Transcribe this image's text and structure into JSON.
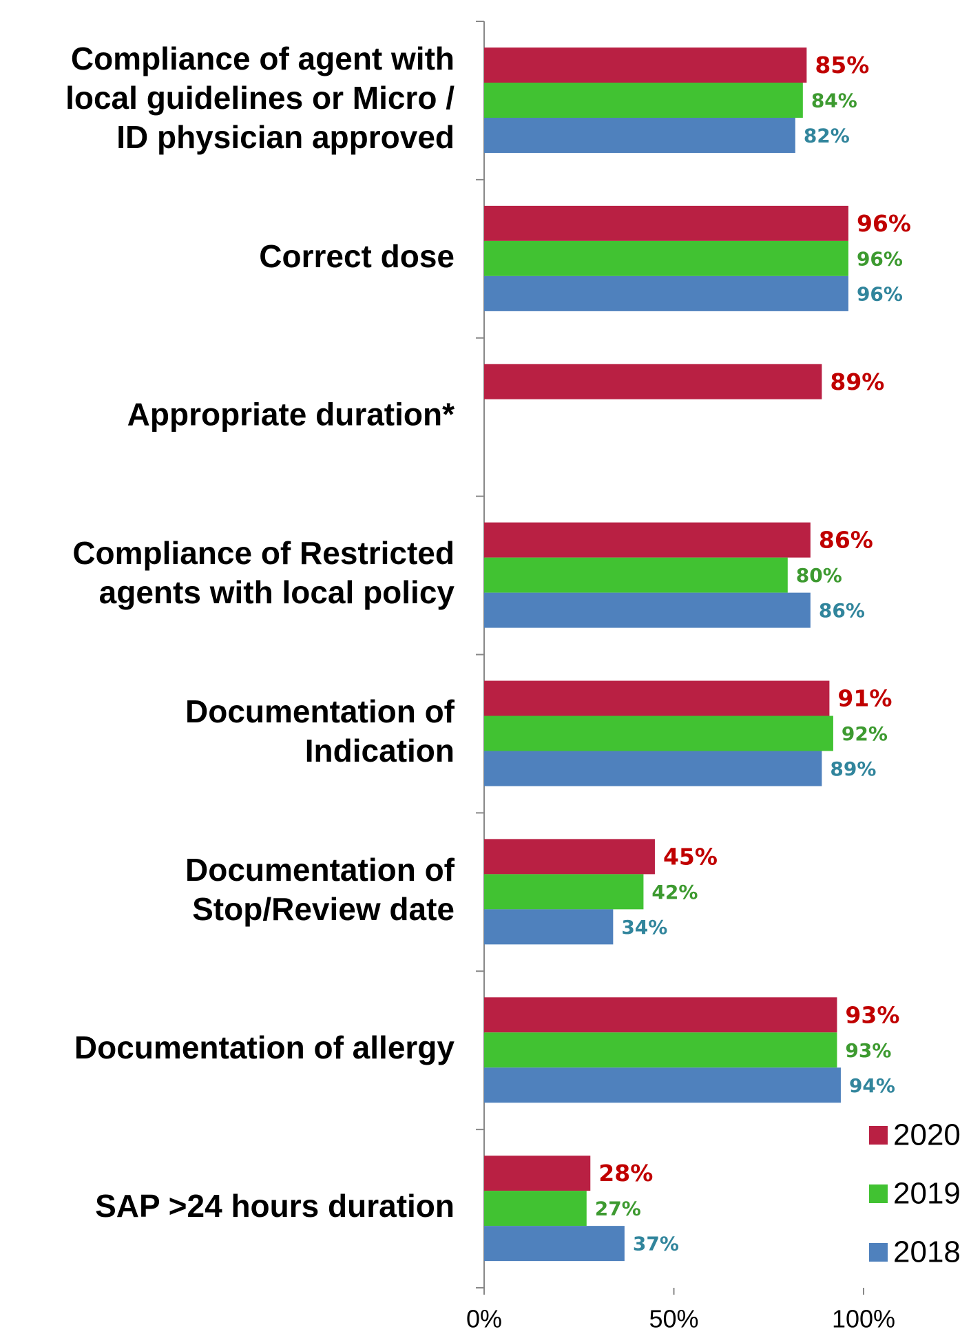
{
  "chart_data": {
    "type": "hbar",
    "categories": [
      [
        "Compliance of agent with",
        "local guidelines or Micro /",
        "ID physician approved"
      ],
      [
        "Correct dose"
      ],
      [
        "Appropriate duration*"
      ],
      [
        "Compliance of Restricted",
        "agents with local policy"
      ],
      [
        "Documentation of",
        "Indication"
      ],
      [
        "Documentation of",
        "Stop/Review date"
      ],
      [
        "Documentation of allergy"
      ],
      [
        "SAP >24 hours duration"
      ]
    ],
    "series": [
      {
        "name": "2020",
        "color": "#b92043",
        "label_color": "#c00000",
        "values": [
          85,
          96,
          89,
          86,
          91,
          45,
          93,
          28
        ],
        "value_labels": [
          "85%",
          "96%",
          "89%",
          "86%",
          "91%",
          "45%",
          "93%",
          "28%"
        ]
      },
      {
        "name": "2019",
        "color": "#41c232",
        "label_color": "#3d9a30",
        "values": [
          84,
          96,
          null,
          80,
          92,
          42,
          93,
          27
        ],
        "value_labels": [
          "84%",
          "96%",
          null,
          "80%",
          "92%",
          "42%",
          "93%",
          "27%"
        ]
      },
      {
        "name": "2018",
        "color": "#4f81bd",
        "label_color": "#31859c",
        "values": [
          82,
          96,
          null,
          86,
          89,
          34,
          94,
          37
        ],
        "value_labels": [
          "82%",
          "96%",
          null,
          "86%",
          "89%",
          "34%",
          "94%",
          "37%"
        ]
      }
    ],
    "xlim": [
      0,
      100
    ],
    "xticks": [
      {
        "value": 0,
        "label": "0%"
      },
      {
        "value": 50,
        "label": "50%"
      },
      {
        "value": 100,
        "label": "100%"
      }
    ],
    "legend": "lower right"
  }
}
